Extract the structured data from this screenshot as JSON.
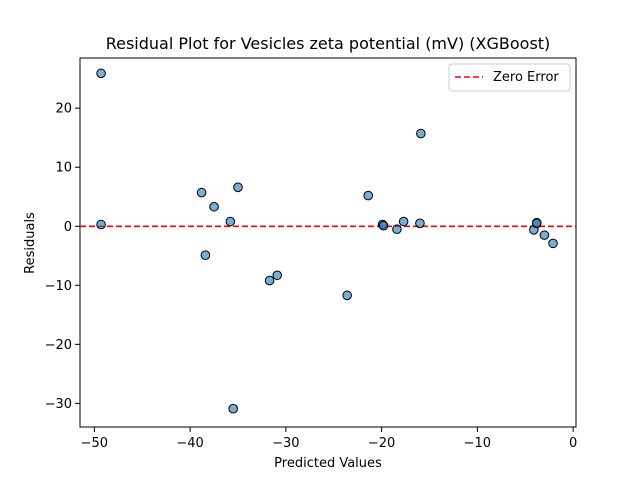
{
  "chart_data": {
    "type": "scatter",
    "title": "Residual Plot for Vesicles zeta potential (mV) (XGBoost)",
    "xlabel": "Predicted Values",
    "ylabel": "Residuals",
    "xlim": [
      -51.5,
      0.3
    ],
    "ylim": [
      -34,
      28.5
    ],
    "xticks": [
      -50,
      -40,
      -30,
      -20,
      -10,
      0
    ],
    "yticks": [
      -30,
      -20,
      -10,
      0,
      10,
      20
    ],
    "grid": false,
    "legend": {
      "position": "top-right",
      "entries": [
        "Zero Error"
      ]
    },
    "point_color": "#1f77b4",
    "reference_line": {
      "y": 0,
      "label": "Zero Error",
      "color": "#ff0000",
      "style": "dashed"
    },
    "points": [
      {
        "x": -49.3,
        "y": 25.9
      },
      {
        "x": -49.3,
        "y": 0.3
      },
      {
        "x": -38.8,
        "y": 5.7
      },
      {
        "x": -38.4,
        "y": -4.9
      },
      {
        "x": -37.5,
        "y": 3.3
      },
      {
        "x": -35.8,
        "y": 0.8
      },
      {
        "x": -35.5,
        "y": -30.9
      },
      {
        "x": -35.0,
        "y": 6.6
      },
      {
        "x": -31.7,
        "y": -9.2
      },
      {
        "x": -30.9,
        "y": -8.3
      },
      {
        "x": -23.6,
        "y": -11.7
      },
      {
        "x": -21.4,
        "y": 5.2
      },
      {
        "x": -19.9,
        "y": 0.3
      },
      {
        "x": -19.8,
        "y": 0.1
      },
      {
        "x": -18.4,
        "y": -0.5
      },
      {
        "x": -17.7,
        "y": 0.8
      },
      {
        "x": -15.9,
        "y": 15.7
      },
      {
        "x": -16.0,
        "y": 0.5
      },
      {
        "x": -4.1,
        "y": -0.6
      },
      {
        "x": -3.8,
        "y": 0.6
      },
      {
        "x": -3.8,
        "y": 0.5
      },
      {
        "x": -3.0,
        "y": -1.5
      },
      {
        "x": -2.1,
        "y": -2.9
      }
    ]
  }
}
